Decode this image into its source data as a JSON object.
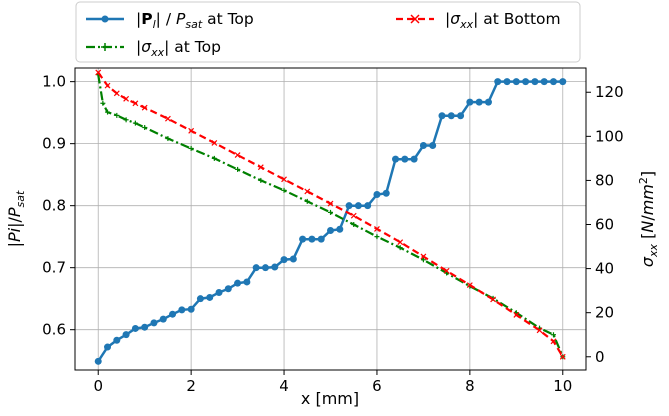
{
  "chart_data": {
    "type": "line",
    "x": {
      "label": "x [mm]",
      "range": [
        -0.5,
        10.5
      ],
      "ticks": [
        0,
        2,
        4,
        6,
        8,
        10
      ],
      "tick_labels": [
        "0",
        "2",
        "4",
        "6",
        "8",
        "10"
      ]
    },
    "y_left": {
      "label": "|Pi|/P_sat",
      "range": [
        0.535,
        1.022
      ],
      "ticks": [
        0.6,
        0.7,
        0.8,
        0.9,
        1.0
      ],
      "tick_labels": [
        "0.6",
        "0.7",
        "0.8",
        "0.9",
        "1.0"
      ]
    },
    "y_right": {
      "label": "σ_xx [N/mm²]",
      "range": [
        -6,
        131
      ],
      "ticks": [
        0,
        20,
        40,
        60,
        80,
        100,
        120
      ],
      "tick_labels": [
        "0",
        "20",
        "40",
        "60",
        "80",
        "100",
        "120"
      ]
    },
    "grid": true,
    "legend_placement": "top, above plot",
    "series": [
      {
        "name": "|P_l| / P_sat at Top",
        "axis": "left",
        "color": "#1f77b4",
        "style": "solid",
        "marker": "circle",
        "x": [
          0,
          0.2,
          0.4,
          0.6,
          0.8,
          1.0,
          1.2,
          1.4,
          1.6,
          1.8,
          2.0,
          2.2,
          2.4,
          2.6,
          2.8,
          3.0,
          3.2,
          3.4,
          3.6,
          3.8,
          4.0,
          4.2,
          4.4,
          4.6,
          4.8,
          5.0,
          5.2,
          5.4,
          5.6,
          5.8,
          6.0,
          6.2,
          6.4,
          6.6,
          6.8,
          7.0,
          7.2,
          7.4,
          7.6,
          7.8,
          8.0,
          8.2,
          8.4,
          8.6,
          8.8,
          9.0,
          9.2,
          9.4,
          9.6,
          9.8,
          10.0
        ],
        "y": [
          0.549,
          0.572,
          0.583,
          0.592,
          0.602,
          0.604,
          0.611,
          0.617,
          0.625,
          0.632,
          0.633,
          0.65,
          0.652,
          0.66,
          0.666,
          0.675,
          0.677,
          0.7,
          0.7,
          0.701,
          0.713,
          0.714,
          0.746,
          0.746,
          0.746,
          0.76,
          0.762,
          0.8,
          0.8,
          0.8,
          0.818,
          0.82,
          0.875,
          0.875,
          0.875,
          0.897,
          0.897,
          0.945,
          0.945,
          0.945,
          0.967,
          0.967,
          0.967,
          1.0,
          1.0,
          1.0,
          1.0,
          1.0,
          1.0,
          1.0,
          1.0
        ]
      },
      {
        "name": "|σ_xx| at Top",
        "axis": "right",
        "color": "#008000",
        "style": "dashdot",
        "marker": "plus",
        "x": [
          0,
          0.1,
          0.2,
          0.4,
          0.6,
          0.8,
          1.0,
          1.5,
          2.0,
          2.5,
          3.0,
          3.5,
          4.0,
          4.5,
          5.0,
          5.5,
          6.0,
          6.5,
          7.0,
          7.5,
          8.0,
          8.5,
          9.0,
          9.5,
          9.8,
          10.0
        ],
        "y": [
          128,
          115,
          111,
          109.5,
          107.5,
          106,
          104,
          99,
          94.5,
          90,
          85,
          80,
          75.5,
          70.5,
          65.5,
          60,
          54.5,
          49.5,
          44,
          38,
          32,
          26.5,
          20,
          13,
          10,
          0
        ]
      },
      {
        "name": "|σ_xx| at Bottom",
        "axis": "right",
        "color": "#ff0000",
        "style": "dashed",
        "marker": "x",
        "x": [
          0,
          0.2,
          0.4,
          0.6,
          0.8,
          1.0,
          1.5,
          2.0,
          2.5,
          3.0,
          3.5,
          4.0,
          4.5,
          5.0,
          5.5,
          6.0,
          6.5,
          7.0,
          7.5,
          8.0,
          8.5,
          9.0,
          9.5,
          9.8,
          10.0
        ],
        "y": [
          129,
          123,
          119.5,
          117,
          115,
          113,
          108,
          102.5,
          97,
          91.5,
          86,
          80.5,
          75,
          69.5,
          64,
          58,
          52,
          45.5,
          39,
          32.5,
          26,
          19,
          12,
          7,
          0
        ]
      }
    ]
  }
}
